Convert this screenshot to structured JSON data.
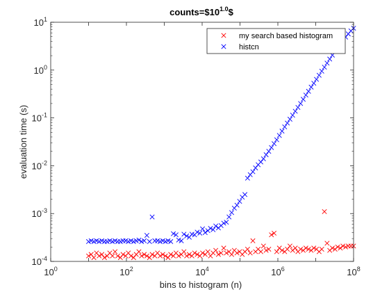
{
  "chart_data": {
    "type": "scatter",
    "title": {
      "base": "counts=$10",
      "sup": "1.0",
      "suffix": "$"
    },
    "xlabel": "bins to histogram (n)",
    "ylabel": "evaluation time (s)",
    "xscale": "log",
    "yscale": "log",
    "xlim": [
      1,
      100000000
    ],
    "ylim": [
      0.0001,
      10
    ],
    "x_ticks": [
      {
        "base": "10",
        "exp": "0"
      },
      {
        "base": "10",
        "exp": "2"
      },
      {
        "base": "10",
        "exp": "4"
      },
      {
        "base": "10",
        "exp": "6"
      },
      {
        "base": "10",
        "exp": "8"
      }
    ],
    "y_ticks": [
      {
        "base": "10",
        "exp": "-4"
      },
      {
        "base": "10",
        "exp": "-3"
      },
      {
        "base": "10",
        "exp": "-2"
      },
      {
        "base": "10",
        "exp": "-1"
      },
      {
        "base": "10",
        "exp": "0"
      },
      {
        "base": "10",
        "exp": "1"
      }
    ],
    "grid": false,
    "marker": "x",
    "legend_position": "top-right",
    "series": [
      {
        "name": "my search based histogram",
        "color": "#ff0000",
        "x": [
          10,
          11.7,
          13.8,
          16.2,
          19,
          22.4,
          26.3,
          30.9,
          36.3,
          42.7,
          50.1,
          58.9,
          69.2,
          81.3,
          95.5,
          112.2,
          131.8,
          154.9,
          182,
          213.8,
          251.2,
          295.1,
          346.7,
          407.4,
          478.6,
          562.3,
          660.7,
          776.2,
          912,
          1071.5,
          1258.9,
          1479.1,
          1737.8,
          2041.7,
          2398.8,
          2818.4,
          3311.3,
          3890.5,
          4570.9,
          5370.3,
          6309.6,
          7413.1,
          8709.6,
          10232.9,
          12022.6,
          14125.4,
          16595.9,
          19498.4,
          22908.7,
          26915.3,
          31622.8,
          37153.5,
          43651.6,
          51286.1,
          60256,
          70794.6,
          83176.4,
          97723.7,
          114815.4,
          134896.3,
          158489.3,
          186208.7,
          218776.2,
          257039.6,
          301995.2,
          354813.4,
          416869.4,
          489778.8,
          575439.9,
          676083,
          794328.2,
          933254.3,
          1096478.2,
          1288249.6,
          1513561.2,
          1778279.4,
          2089296.1,
          2454708.9,
          2884031.5,
          3388441.6,
          3981071.7,
          4677351.4,
          5495408.7,
          6456542.3,
          7585775.8,
          8912509.4,
          10471285.5,
          12302687.7,
          14454397.7,
          16982436.5,
          19952623.1,
          23442288.2,
          27542287,
          32359365.7,
          38018939.6,
          44668359.2,
          52480746,
          61659500.2,
          72443596,
          85113803.8,
          100000000
        ],
        "y": [
          0.00013,
          0.00014,
          0.00012,
          0.00015,
          0.00013,
          0.00014,
          0.00012,
          0.00013,
          0.00015,
          0.00013,
          0.00016,
          0.00013,
          0.00012,
          0.00014,
          0.00013,
          0.00015,
          0.00013,
          0.00012,
          0.00014,
          0.00016,
          0.00013,
          0.00014,
          0.00013,
          0.00012,
          0.00014,
          0.00013,
          0.00015,
          0.00013,
          0.00014,
          0.00013,
          0.00012,
          0.00014,
          0.00013,
          0.00015,
          0.00013,
          0.00014,
          0.00016,
          0.00013,
          0.00014,
          0.00013,
          0.00015,
          0.00014,
          0.00013,
          0.00015,
          0.00014,
          0.00016,
          0.00013,
          0.00015,
          0.00017,
          0.00014,
          0.00015,
          0.00019,
          0.00015,
          0.00016,
          0.00014,
          0.00017,
          0.00015,
          0.00016,
          0.00014,
          0.00016,
          0.00018,
          0.00015,
          0.00027,
          0.00016,
          0.00018,
          0.00016,
          0.00021,
          0.00017,
          0.00018,
          0.00036,
          0.00039,
          0.00016,
          0.00019,
          0.00017,
          0.00016,
          0.00018,
          0.00021,
          0.00017,
          0.00019,
          0.00016,
          0.00018,
          0.00017,
          0.00019,
          0.00018,
          0.00017,
          0.00019,
          0.00018,
          0.00016,
          0.00018,
          0.0011,
          0.00024,
          0.00017,
          0.00019,
          0.00018,
          0.0002,
          0.00019,
          0.00021,
          0.0002,
          0.00021,
          0.00021,
          0.00021
        ]
      },
      {
        "name": "histcn",
        "color": "#0000ff",
        "x": [
          10,
          11.7,
          13.8,
          16.2,
          19,
          22.4,
          26.3,
          30.9,
          36.3,
          42.7,
          50.1,
          58.9,
          69.2,
          81.3,
          95.5,
          112.2,
          131.8,
          154.9,
          182,
          213.8,
          251.2,
          295.1,
          346.7,
          407.4,
          478.6,
          562.3,
          660.7,
          776.2,
          912,
          1071.5,
          1258.9,
          1479.1,
          1737.8,
          2041.7,
          2398.8,
          2818.4,
          3311.3,
          3890.5,
          4570.9,
          5370.3,
          6309.6,
          7413.1,
          8709.6,
          10232.9,
          12022.6,
          14125.4,
          16595.9,
          19498.4,
          22908.7,
          26915.3,
          31622.8,
          37153.5,
          43651.6,
          51286.1,
          60256,
          70794.6,
          83176.4,
          97723.7,
          114815.4,
          134896.3,
          158489.3,
          186208.7,
          218776.2,
          257039.6,
          301995.2,
          354813.4,
          416869.4,
          489778.8,
          575439.9,
          676083,
          794328.2,
          933254.3,
          1096478.2,
          1288249.6,
          1513561.2,
          1778279.4,
          2089296.1,
          2454708.9,
          2884031.5,
          3388441.6,
          3981071.7,
          4677351.4,
          5495408.7,
          6456542.3,
          7585775.8,
          8912509.4,
          10471285.5,
          12302687.7,
          14454397.7,
          16982436.5,
          19952623.1,
          23442288.2,
          27542287,
          32359365.7,
          38018939.6,
          44668359.2,
          52480746,
          61659500.2,
          72443596,
          85113803.8,
          100000000
        ],
        "y": [
          0.00026,
          0.00027,
          0.00026,
          0.00027,
          0.00026,
          0.00027,
          0.00026,
          0.00026,
          0.00027,
          0.00026,
          0.00027,
          0.00026,
          0.00026,
          0.00027,
          0.00027,
          0.00026,
          0.00027,
          0.00026,
          0.00027,
          0.00028,
          0.00026,
          0.00027,
          0.00035,
          0.00026,
          0.00085,
          0.00027,
          0.00027,
          0.00026,
          0.00027,
          0.00026,
          0.00027,
          0.00026,
          0.00038,
          0.00036,
          0.00028,
          0.00027,
          0.00037,
          0.00034,
          0.00032,
          0.00037,
          0.00036,
          0.00041,
          0.00039,
          0.00048,
          0.0004,
          0.00044,
          0.00049,
          0.00046,
          0.00055,
          0.0005,
          0.00056,
          0.00063,
          0.00066,
          0.00085,
          0.00105,
          0.0013,
          0.0015,
          0.0018,
          0.0022,
          0.0025,
          0.0055,
          0.0065,
          0.0075,
          0.009,
          0.0105,
          0.012,
          0.014,
          0.017,
          0.02,
          0.024,
          0.029,
          0.035,
          0.043,
          0.053,
          0.065,
          0.078,
          0.094,
          0.114,
          0.138,
          0.166,
          0.2,
          0.245,
          0.3,
          0.36,
          0.44,
          0.53,
          0.64,
          0.78,
          0.95,
          1.15,
          1.4,
          1.7,
          2.05,
          2.5,
          3.0,
          3.55,
          4.2,
          4.9,
          5.7,
          6.6,
          7.5
        ]
      }
    ]
  }
}
